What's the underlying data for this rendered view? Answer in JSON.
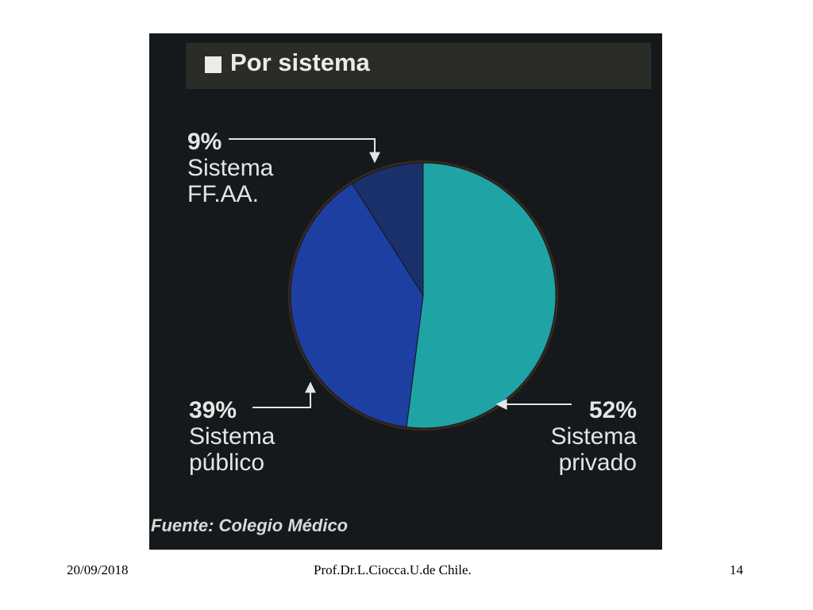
{
  "chart_data": {
    "type": "pie",
    "title": "Por sistema",
    "slices": [
      {
        "label": "Sistema privado",
        "percent_label": "52%",
        "value": 52,
        "color": "#20a3a5"
      },
      {
        "label": "Sistema público",
        "percent_label": "39%",
        "value": 39,
        "color": "#1e3fa2"
      },
      {
        "label": "Sistema FF.AA.",
        "percent_label": "9%",
        "value": 9,
        "color": "#19306b"
      }
    ],
    "source": "Fuente: Colegio Médico",
    "background_color": "#16191b"
  },
  "labels": {
    "ffaa": {
      "pct": "9%",
      "line1": "Sistema",
      "line2": "FF.AA."
    },
    "publico": {
      "pct": "39%",
      "line1": "Sistema",
      "line2": "público"
    },
    "privado": {
      "pct": "52%",
      "line1": "Sistema",
      "line2": "privado"
    }
  },
  "footer": {
    "date": "20/09/2018",
    "author": "Prof.Dr.L.Ciocca.U.de Chile.",
    "page": "14"
  }
}
